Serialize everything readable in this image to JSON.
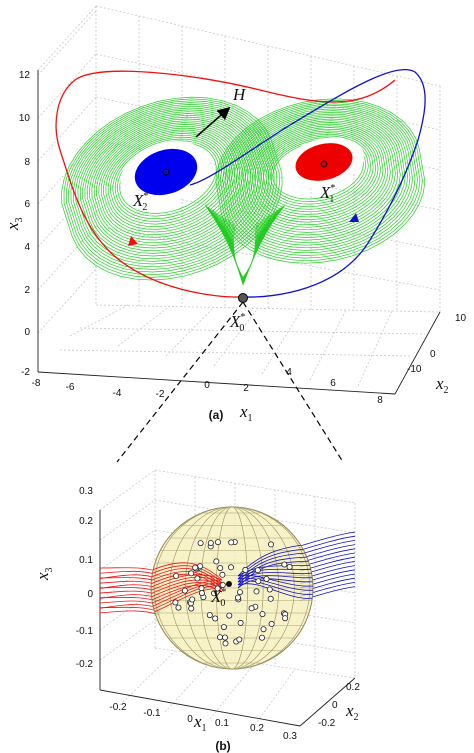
{
  "panel_a": {
    "caption": "(a)",
    "ticks": {
      "x1": [
        "-8",
        "-6",
        "-4",
        "-2",
        "0",
        "2",
        "4",
        "6",
        "8"
      ],
      "x2": [
        "-10",
        "0",
        "10"
      ],
      "x3": [
        "-2",
        "0",
        "2",
        "4",
        "6",
        "8",
        "10",
        "12"
      ]
    },
    "axis_labels": {
      "x1": "x",
      "x1_sub": "1",
      "x2": "x",
      "x2_sub": "2",
      "x3": "x",
      "x3_sub": "3"
    },
    "labels": {
      "H": "H",
      "X1": "X",
      "X1_sub": "1",
      "X1_sup": "*",
      "X2": "X",
      "X2_sub": "2",
      "X2_sup": "*",
      "X0": "X",
      "X0_sub": "0",
      "X0_sup": "*"
    },
    "colors": {
      "attractor": "#22cc22",
      "left_region": "#0000ee",
      "right_region": "#ee0000",
      "left_orbit": "#ee1111",
      "right_orbit": "#1111cc"
    }
  },
  "panel_b": {
    "caption": "(b)",
    "ticks": {
      "x1": [
        "-0.2",
        "-0.1",
        "0",
        "0.1",
        "0.2",
        "0.3"
      ],
      "x2": [
        "-0.2",
        "0",
        "0.2"
      ],
      "x3": [
        "-0.2",
        "-0.1",
        "0",
        "0.1",
        "0.2",
        "0.3"
      ]
    },
    "axis_labels": {
      "x1": "x",
      "x1_sub": "1",
      "x2": "x",
      "x2_sub": "2",
      "x3": "x",
      "x3_sub": "3"
    },
    "labels": {
      "X0": "X",
      "X0_sub": "0",
      "X0_sup": "*"
    },
    "colors": {
      "sphere_fill": "#f5edb6",
      "sphere_mesh": "#a89f70",
      "left_lines": "#ee1111",
      "right_lines": "#1111cc"
    }
  }
}
